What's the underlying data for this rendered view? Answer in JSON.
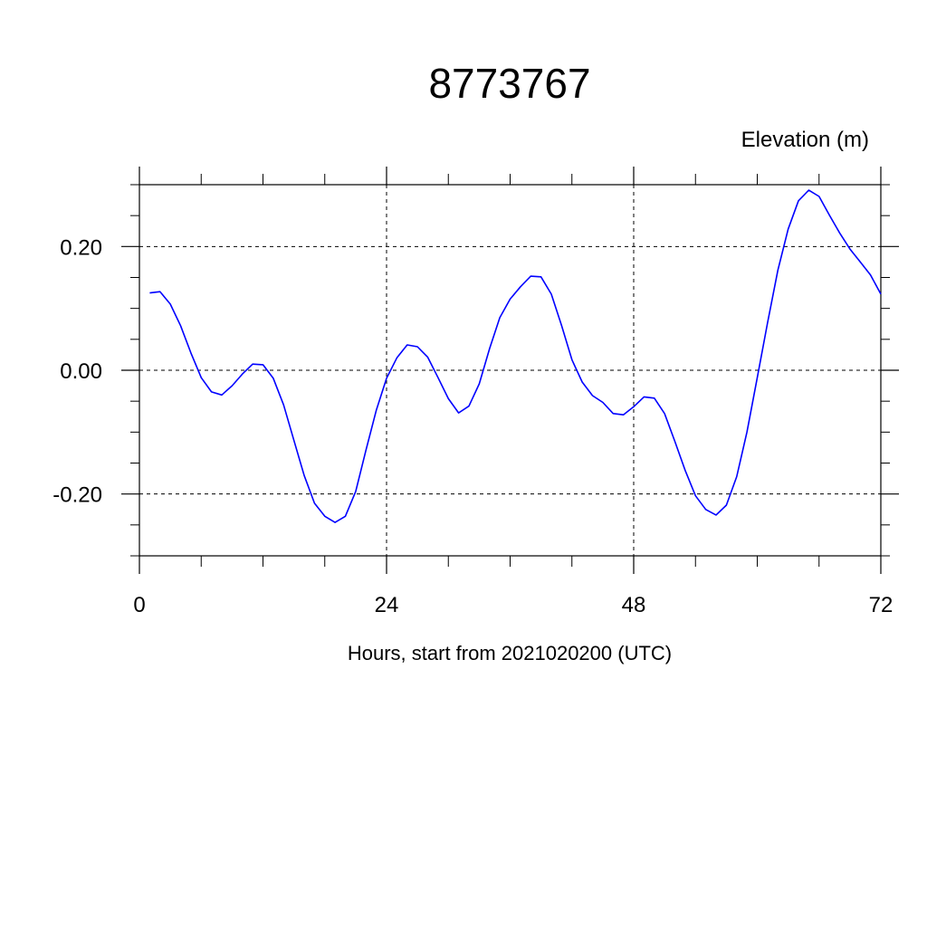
{
  "chart_data": {
    "type": "line",
    "title": "8773767",
    "ylabel": "Elevation (m)",
    "xlabel": "Hours, start from 2021020200 (UTC)",
    "xlim": [
      0,
      72
    ],
    "ylim": [
      -0.3,
      0.3
    ],
    "x_ticks": [
      0,
      24,
      48,
      72
    ],
    "x_tick_labels": [
      "0",
      "24",
      "48",
      "72"
    ],
    "y_ticks": [
      -0.2,
      0.0,
      0.2
    ],
    "y_tick_labels": [
      "-0.20",
      "0.00",
      "0.20"
    ],
    "grid": "dashed at major ticks",
    "series": [
      {
        "color": "#0000ff",
        "x": [
          1,
          2,
          3,
          4,
          5,
          6,
          7,
          8,
          9,
          10,
          11,
          12,
          13,
          14,
          15,
          16,
          17,
          18,
          19,
          20,
          21,
          22,
          23,
          24,
          25,
          26,
          27,
          28,
          29,
          30,
          31,
          32,
          33,
          34,
          35,
          36,
          37,
          38,
          39,
          40,
          41,
          42,
          43,
          44,
          45,
          46,
          47,
          48,
          49,
          50,
          51,
          52,
          53,
          54,
          55,
          56,
          57,
          58,
          59,
          60,
          61,
          62,
          63,
          64,
          65,
          66,
          67,
          68,
          69,
          70,
          71,
          72
        ],
        "y": [
          0.125,
          0.127,
          0.107,
          0.072,
          0.028,
          -0.012,
          -0.035,
          -0.04,
          -0.025,
          -0.006,
          0.01,
          0.009,
          -0.013,
          -0.056,
          -0.113,
          -0.17,
          -0.215,
          -0.236,
          -0.246,
          -0.236,
          -0.196,
          -0.129,
          -0.065,
          -0.013,
          0.02,
          0.041,
          0.038,
          0.021,
          -0.012,
          -0.046,
          -0.069,
          -0.058,
          -0.022,
          0.035,
          0.085,
          0.115,
          0.135,
          0.152,
          0.151,
          0.123,
          0.072,
          0.017,
          -0.019,
          -0.041,
          -0.052,
          -0.07,
          -0.072,
          -0.059,
          -0.043,
          -0.045,
          -0.07,
          -0.115,
          -0.162,
          -0.203,
          -0.225,
          -0.234,
          -0.218,
          -0.172,
          -0.1,
          -0.012,
          0.077,
          0.162,
          0.228,
          0.274,
          0.291,
          0.281,
          0.251,
          0.222,
          0.196,
          0.175,
          0.154,
          0.123
        ]
      }
    ]
  }
}
